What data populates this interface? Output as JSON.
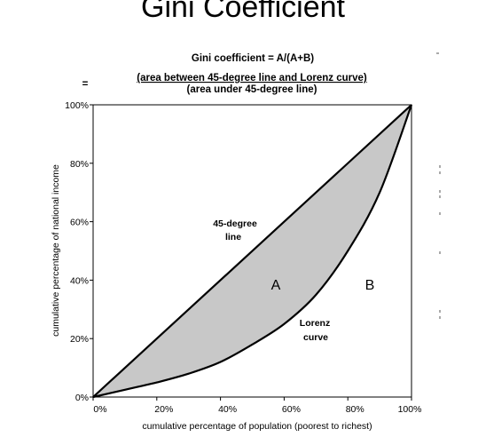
{
  "slide": {
    "title": "Gini Coefficient"
  },
  "formula": {
    "top": "Gini coefficient = A/(A+B)",
    "equals": "=",
    "numerator": "(area between 45-degree line and Lorenz curve)",
    "denominator": "(area under 45-degree line)"
  },
  "chart_data": {
    "type": "line",
    "xlabel": "cumulative percentage of population (poorest to richest)",
    "ylabel": "cumulative percentage of national income",
    "xlim": [
      0,
      100
    ],
    "ylim": [
      0,
      100
    ],
    "x_ticks": [
      "0%",
      "20%",
      "40%",
      "60%",
      "80%",
      "100%"
    ],
    "y_ticks": [
      "0%",
      "20%",
      "40%",
      "60%",
      "80%",
      "100%"
    ],
    "grid": false,
    "series": [
      {
        "name": "45-degree line",
        "x": [
          0,
          100
        ],
        "y": [
          0,
          100
        ],
        "color": "#000000"
      },
      {
        "name": "Lorenz curve",
        "x": [
          0,
          10,
          20,
          30,
          40,
          50,
          60,
          70,
          80,
          90,
          100
        ],
        "y": [
          0,
          2.5,
          5,
          8,
          12,
          18,
          25,
          35,
          50,
          70,
          100
        ],
        "color": "#000000"
      }
    ],
    "shaded_region_color": "#c8c8c8",
    "annotations": {
      "diagonal_line1": "45-degree",
      "diagonal_line2": "line",
      "lorenz_line1": "Lorenz",
      "lorenz_line2": "curve",
      "region_a": "A",
      "region_b": "B"
    }
  }
}
